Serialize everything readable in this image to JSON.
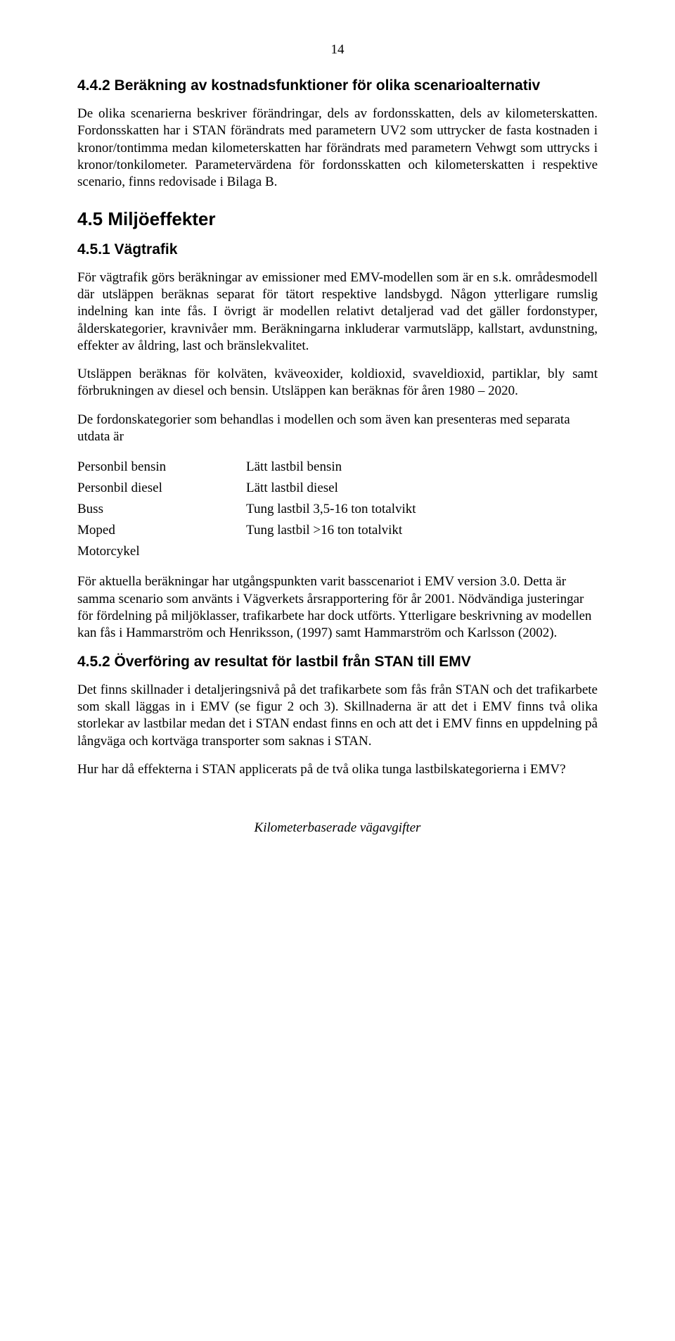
{
  "page_number": "14",
  "section_442": {
    "heading": "4.4.2  Beräkning av kostnadsfunktioner för olika scenarioalternativ",
    "p1": "De olika scenarierna beskriver förändringar, dels av fordonsskatten, dels av kilometerskatten. Fordonsskatten har i STAN förändrats med parametern UV2 som uttrycker de fasta kostnaden i kronor/tontimma medan kilometerskatten har förändrats med parametern Vehwgt som uttrycks i kronor/tonkilometer. Parametervärdena för fordonsskatten och kilometerskatten i respektive scenario, finns redovisade i Bilaga B."
  },
  "section_45": {
    "heading": "4.5  Miljöeffekter"
  },
  "section_451": {
    "heading": "4.5.1  Vägtrafik",
    "p1": "För vägtrafik görs beräkningar av emissioner med EMV-modellen som är en s.k. områdesmodell där utsläppen beräknas separat för tätort respektive landsbygd. Någon ytterligare rumslig indelning kan inte fås. I övrigt är modellen relativt detaljerad vad det gäller fordonstyper, ålderskategorier, kravnivåer mm. Beräkningarna inkluderar varmutsläpp, kallstart, avdunstning, effekter av åldring, last och bränslekvalitet.",
    "p2": "Utsläppen beräknas för kolväten, kväveoxider, koldioxid, svaveldioxid, partiklar, bly samt förbrukningen av diesel och bensin. Utsläppen kan beräknas för åren 1980 – 2020.",
    "p3": "De fordonskategorier som behandlas i modellen och som även kan presenteras med separata utdata är",
    "categories": [
      {
        "left": "Personbil bensin",
        "right": "Lätt lastbil bensin"
      },
      {
        "left": "Personbil  diesel",
        "right": "Lätt lastbil diesel"
      },
      {
        "left": "Buss",
        "right": "Tung lastbil 3,5-16 ton totalvikt"
      },
      {
        "left": "Moped",
        "right": "Tung lastbil >16 ton totalvikt"
      },
      {
        "left": "Motorcykel",
        "right": ""
      }
    ],
    "p4": "För aktuella beräkningar har utgångspunkten varit basscenariot i EMV version 3.0. Detta är samma scenario som använts i Vägverkets årsrapportering för år 2001. Nödvändiga justeringar för fördelning på miljöklasser, trafikarbete har dock utförts. Ytterligare beskrivning av modellen kan fås i Hammarström och Henriksson, (1997) samt Hammarström och Karlsson (2002)."
  },
  "section_452": {
    "heading": "4.5.2  Överföring av resultat för lastbil från STAN till EMV",
    "p1": "Det finns skillnader i detaljeringsnivå på det trafikarbete som fås från STAN och det trafikarbete som skall läggas in i EMV (se figur 2 och 3). Skillnaderna är att det i EMV finns två olika storlekar av lastbilar medan det i STAN endast finns en och att det i EMV finns en uppdelning på långväga och kortväga transporter som saknas i STAN.",
    "p2": "Hur har då effekterna i STAN applicerats på de två olika tunga lastbilskategorierna i EMV?"
  },
  "footer": "Kilometerbaserade vägavgifter"
}
